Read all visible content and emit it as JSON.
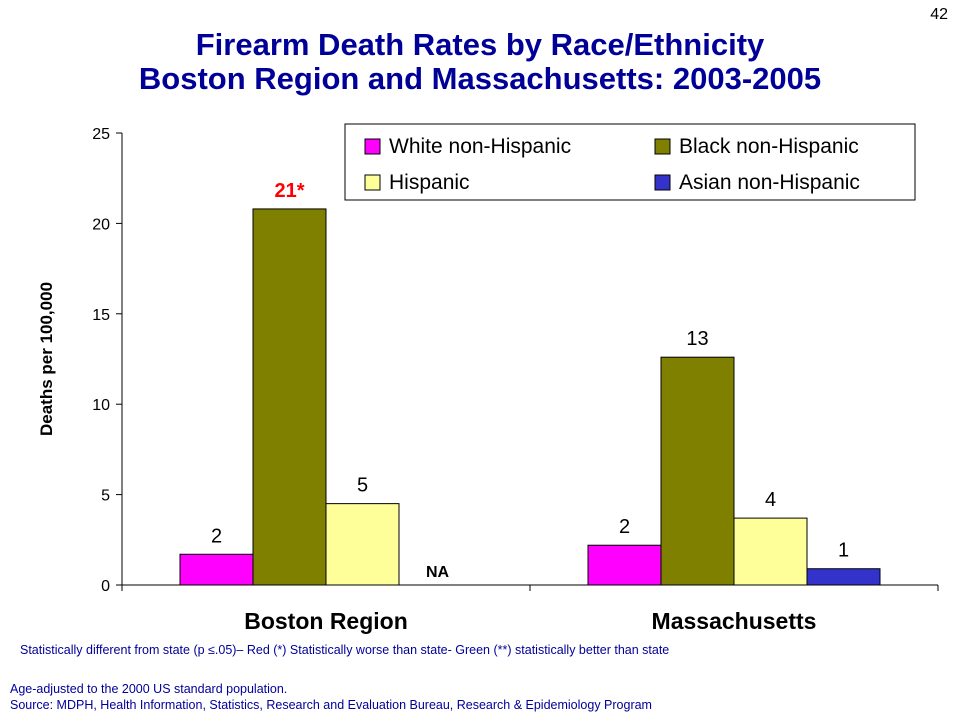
{
  "page_number": "42",
  "title_line1": "Firearm Death Rates by Race/Ethnicity",
  "title_line2": "Boston Region and Massachusetts: 2003-2005",
  "chart_data": {
    "type": "bar",
    "ylabel": "Deaths per 100,000",
    "ylim": [
      0,
      25
    ],
    "yticks": [
      0,
      5,
      10,
      15,
      20,
      25
    ],
    "categories": [
      "Boston Region",
      "Massachusetts"
    ],
    "series": [
      {
        "name": "White non-Hispanic",
        "color": "#ff00ff",
        "values": [
          1.7,
          2.2
        ],
        "labels": [
          "2",
          "2"
        ],
        "label_colors": [
          "#000000",
          "#000000"
        ]
      },
      {
        "name": "Black non-Hispanic",
        "color": "#808000",
        "values": [
          20.8,
          12.6
        ],
        "labels": [
          "21*",
          "13"
        ],
        "label_colors": [
          "#ff0000",
          "#000000"
        ]
      },
      {
        "name": "Hispanic",
        "color": "#ffff99",
        "values": [
          4.5,
          3.7
        ],
        "labels": [
          "5",
          "4"
        ],
        "label_colors": [
          "#000000",
          "#000000"
        ]
      },
      {
        "name": "Asian non-Hispanic",
        "color": "#3333cc",
        "values": [
          null,
          0.9
        ],
        "labels": [
          "NA",
          "1"
        ],
        "label_colors": [
          "#000000",
          "#000000"
        ]
      }
    ],
    "legend_position": "top-right",
    "grid": false
  },
  "footnote": "Statistically different from state (p ≤.05)– Red (*) Statistically worse than state- Green (**) statistically better than state",
  "note_age": "Age-adjusted to the 2000 US standard population.",
  "note_source": "Source:  MDPH, Health Information, Statistics, Research and Evaluation Bureau, Research & Epidemiology Program"
}
